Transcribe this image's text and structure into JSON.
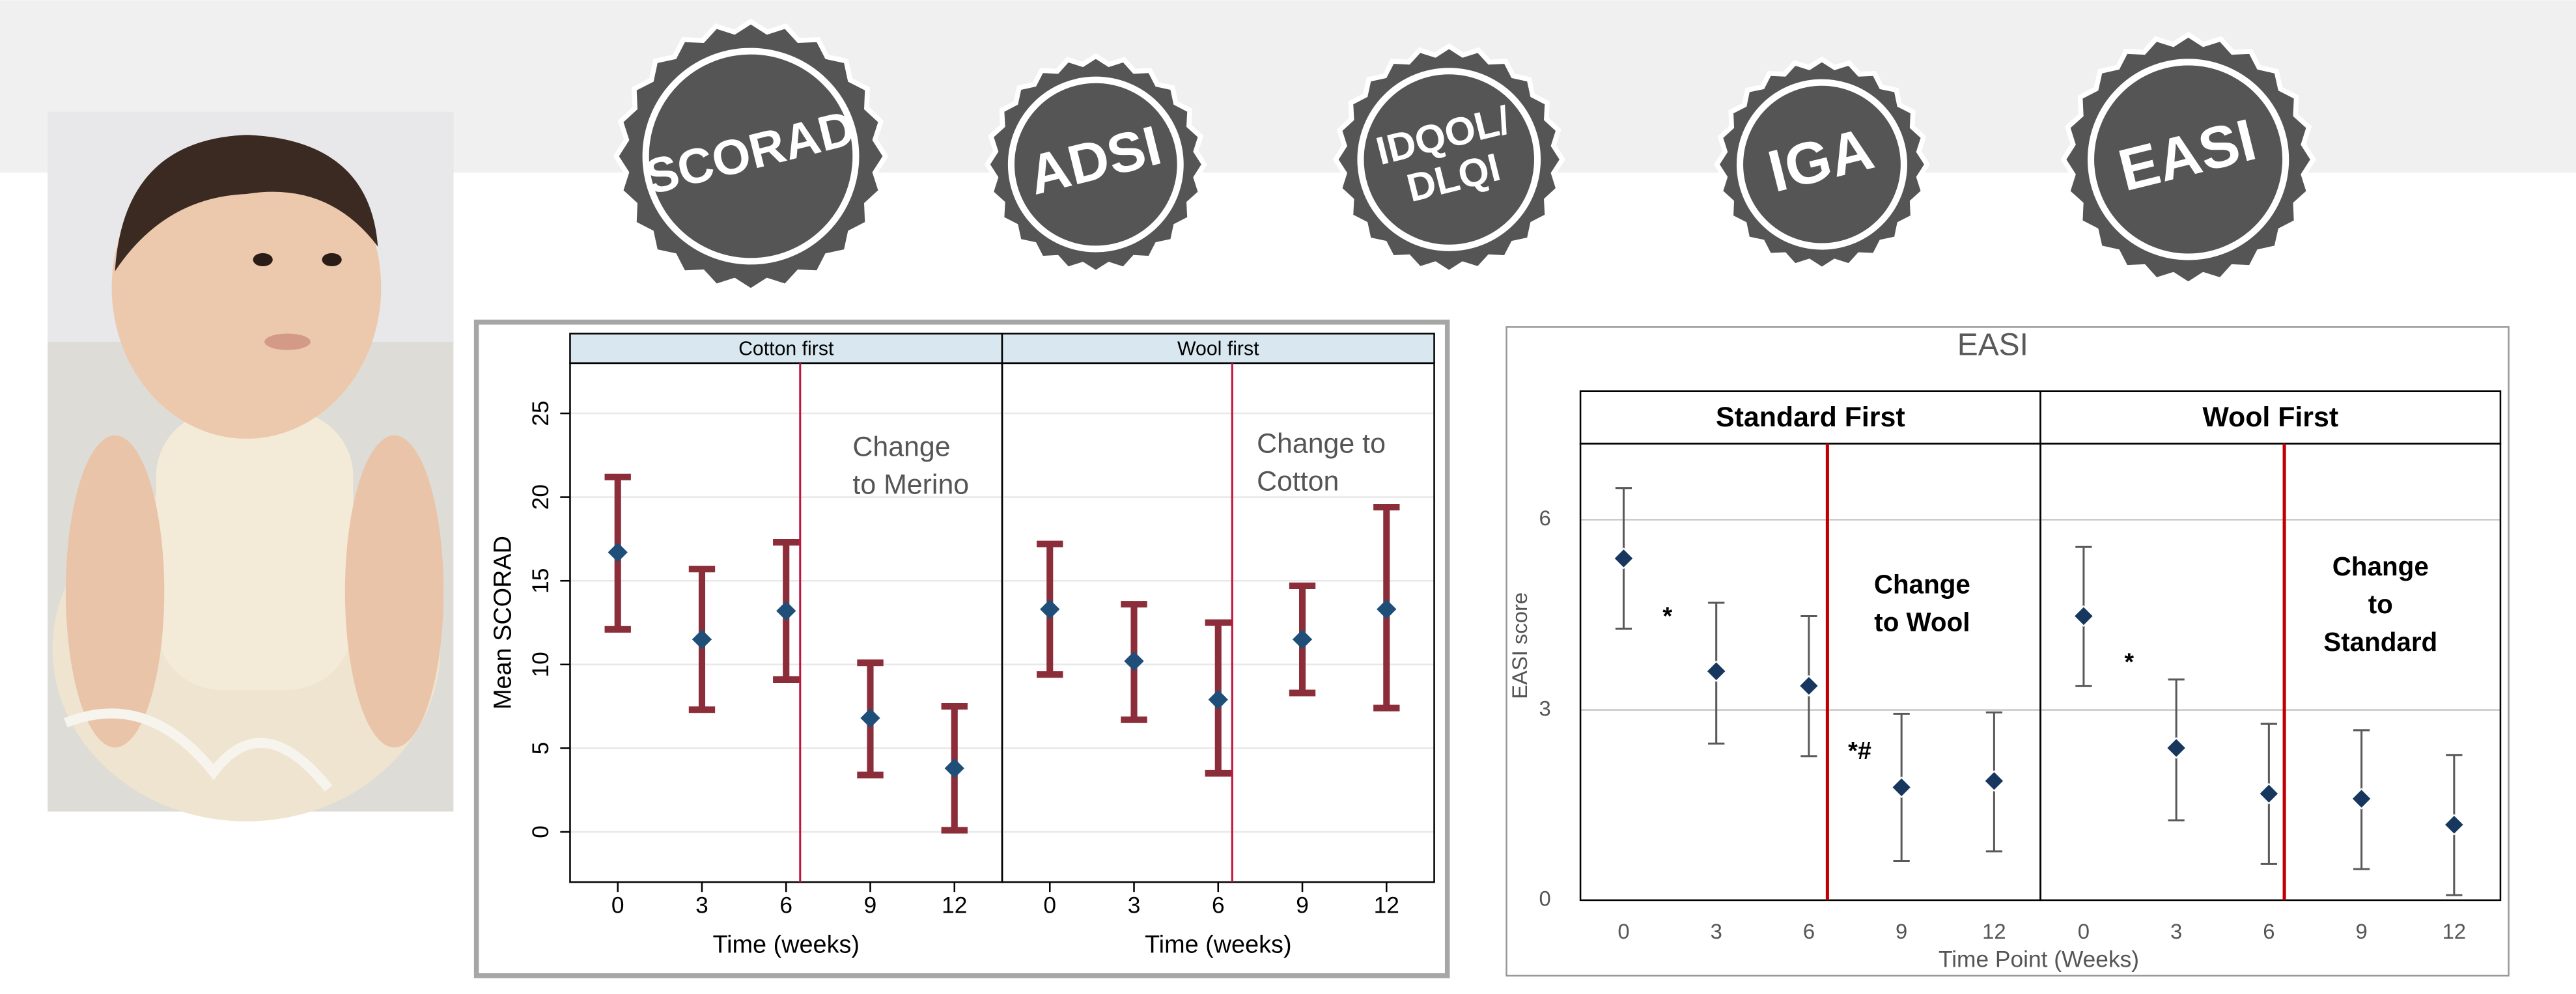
{
  "badges": [
    [
      "SCORAD"
    ],
    [
      "ADSI"
    ],
    [
      "IDQOL/",
      "DLQI"
    ],
    [
      "IGA"
    ],
    [
      "EASI"
    ]
  ],
  "chart_data": [
    {
      "type": "errorbar",
      "ylabel": "Mean SCORAD",
      "ylim": [
        -3,
        28
      ],
      "yticks": [
        0,
        5,
        10,
        15,
        20,
        25
      ],
      "xlim": [
        -1.7,
        13.7
      ],
      "xticks": [
        0,
        3,
        6,
        9,
        12
      ],
      "grid": true,
      "bar_color": "#8b2e3a",
      "marker_color": "#1f4e79",
      "line_color": "#c0143c",
      "panels": [
        {
          "title": "Cotton first",
          "xlabel": "Time (weeks)",
          "change_at": 6.5,
          "change_label": [
            "Change",
            "to Merino"
          ],
          "x": [
            0,
            3,
            6,
            9,
            12
          ],
          "values": [
            16.7,
            11.5,
            13.2,
            6.8,
            3.8
          ],
          "lower": [
            12.1,
            7.3,
            9.1,
            3.4,
            0.1
          ],
          "upper": [
            21.2,
            15.7,
            17.3,
            10.1,
            7.5
          ]
        },
        {
          "title": "Wool first",
          "xlabel": "Time (weeks)",
          "change_at": 6.5,
          "change_label": [
            "Change to",
            "Cotton"
          ],
          "x": [
            0,
            3,
            6,
            9,
            12
          ],
          "values": [
            13.3,
            10.2,
            7.9,
            11.5,
            13.3
          ],
          "lower": [
            9.4,
            6.7,
            3.5,
            8.3,
            7.4
          ],
          "upper": [
            17.2,
            13.6,
            12.5,
            14.7,
            19.4
          ]
        }
      ]
    },
    {
      "type": "errorbar",
      "title": "EASI",
      "ylabel": "EASI score",
      "xlabel": "Time Point (Weeks)",
      "ylim": [
        0,
        7.2
      ],
      "yticks": [
        0,
        3,
        6
      ],
      "xlim": [
        -1.4,
        13.5
      ],
      "xticks": [
        0,
        3,
        6,
        9,
        12
      ],
      "grid": true,
      "bar_color": "#595959",
      "marker_color": "#17375e",
      "line_color": "#c00000",
      "panels": [
        {
          "title": "Standard First",
          "change_at": 6.6,
          "change_label": [
            "Change",
            "to Wool"
          ],
          "notes": [
            "*",
            "*#"
          ],
          "x": [
            0,
            3,
            6,
            9,
            12
          ],
          "values": [
            5.39,
            3.61,
            3.38,
            1.78,
            1.88
          ],
          "lower": [
            4.28,
            2.47,
            2.27,
            0.62,
            0.77
          ],
          "upper": [
            6.5,
            4.69,
            4.48,
            2.94,
            2.96
          ]
        },
        {
          "title": "Wool First",
          "change_at": 6.5,
          "change_label": [
            "Change",
            "to",
            "Standard"
          ],
          "notes": [
            "*"
          ],
          "x": [
            0,
            3,
            6,
            9,
            12
          ],
          "values": [
            4.48,
            2.4,
            1.68,
            1.6,
            1.19
          ],
          "lower": [
            3.38,
            1.26,
            0.57,
            0.49,
            0.08
          ],
          "upper": [
            5.57,
            3.48,
            2.78,
            2.68,
            2.29
          ]
        }
      ]
    }
  ]
}
